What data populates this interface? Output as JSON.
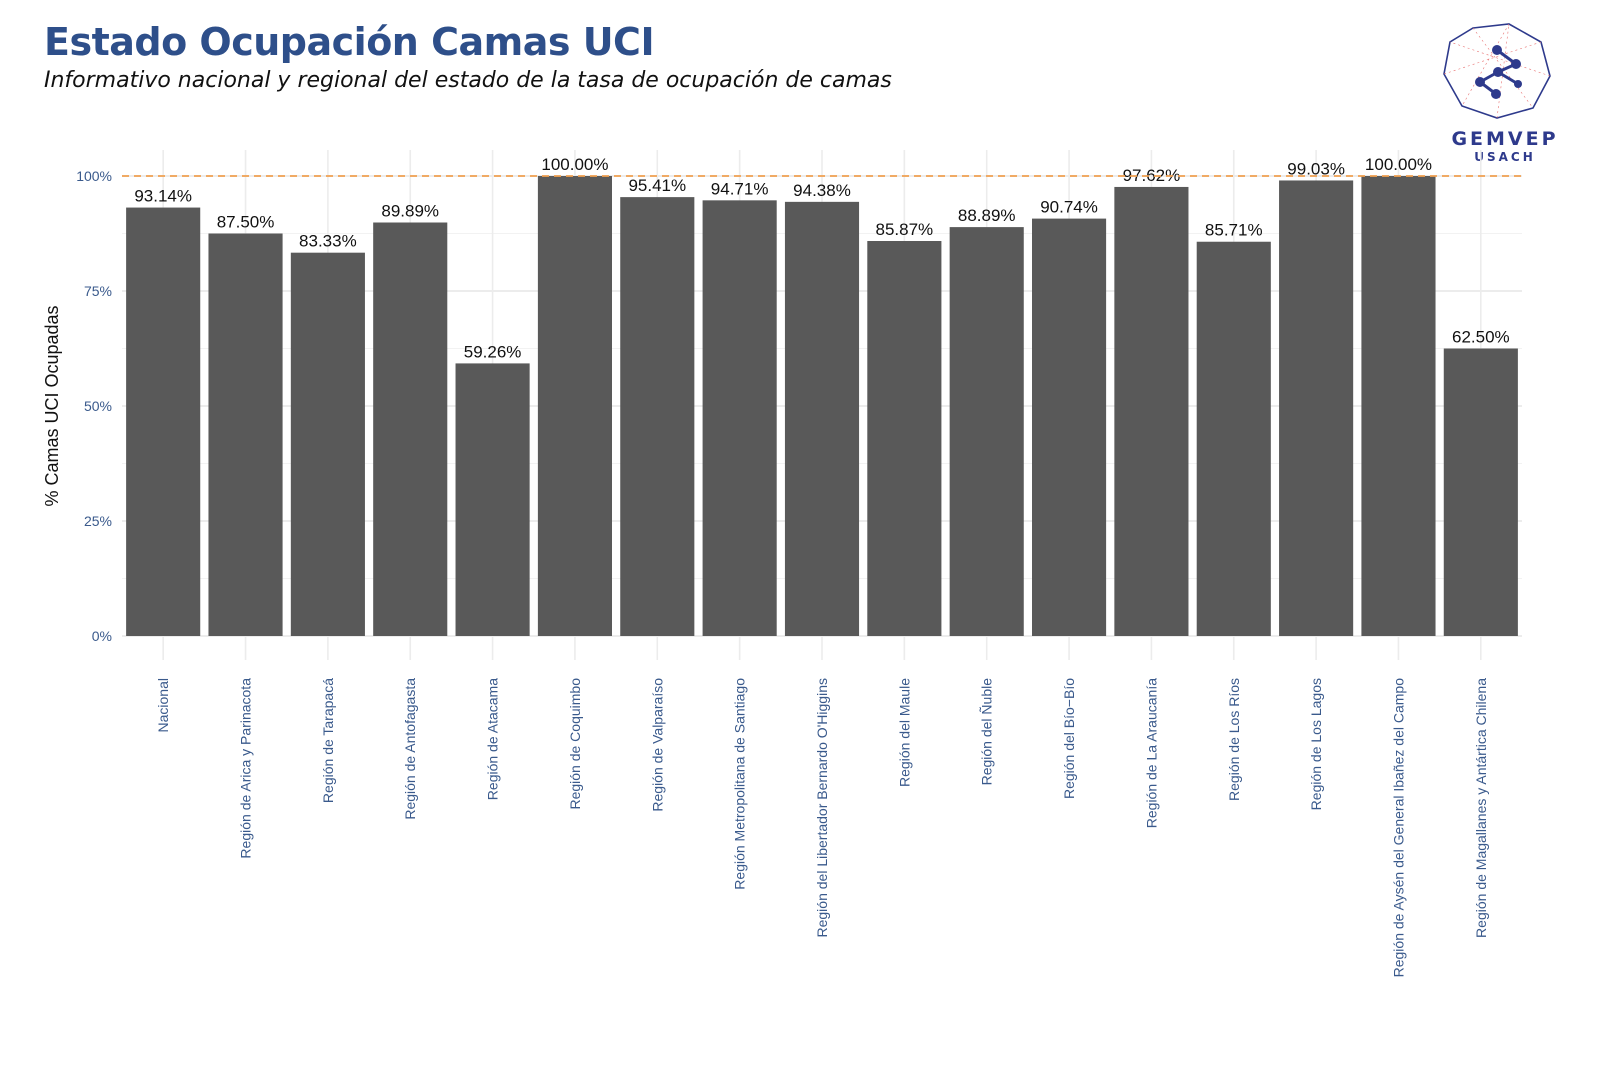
{
  "header": {
    "title": "Estado Ocupación Camas UCI",
    "subtitle": "Informativo nacional y regional del estado de la tasa de ocupación de camas"
  },
  "logo": {
    "name": "GEMVEP",
    "sub": "USACH",
    "icon": "network-nodes-logo-icon"
  },
  "colors": {
    "bar": "#595959",
    "reference_line": "#f0a050",
    "axis_text": "#3a5a8c",
    "title": "#2e4f8a"
  },
  "chart_data": {
    "type": "bar",
    "title": "",
    "xlabel": "",
    "ylabel": "% Camas UCI Ocupadas",
    "ylim": [
      0,
      1.05
    ],
    "y_ticks": [
      0,
      0.25,
      0.5,
      0.75,
      1.0
    ],
    "y_tick_labels": [
      "0%",
      "25%",
      "50%",
      "75%",
      "100%"
    ],
    "reference_line": 1.0,
    "grid": true,
    "categories": [
      "Nacional",
      "Región de Arica y Parinacota",
      "Región de Tarapacá",
      "Región de Antofagasta",
      "Región de Atacama",
      "Región de Coquimbo",
      "Región de Valparaíso",
      "Región Metropolitana de Santiago",
      "Región del Libertador Bernardo O'Higgins",
      "Región del Maule",
      "Región del Ñuble",
      "Región del Bío−Bío",
      "Región de La Araucanía",
      "Región de Los Ríos",
      "Región de Los Lagos",
      "Región de Aysén del General Ibañez del Campo",
      "Región de Magallanes y Antártica Chilena"
    ],
    "values": [
      0.9314,
      0.875,
      0.8333,
      0.8989,
      0.5926,
      1.0,
      0.9541,
      0.9471,
      0.9438,
      0.8587,
      0.8889,
      0.9074,
      0.9762,
      0.8571,
      0.9903,
      1.0,
      0.625
    ],
    "labels": [
      "93.14%",
      "87.50%",
      "83.33%",
      "89.89%",
      "59.26%",
      "100.00%",
      "95.41%",
      "94.71%",
      "94.38%",
      "85.87%",
      "88.89%",
      "90.74%",
      "97.62%",
      "85.71%",
      "99.03%",
      "100.00%",
      "62.50%"
    ]
  }
}
